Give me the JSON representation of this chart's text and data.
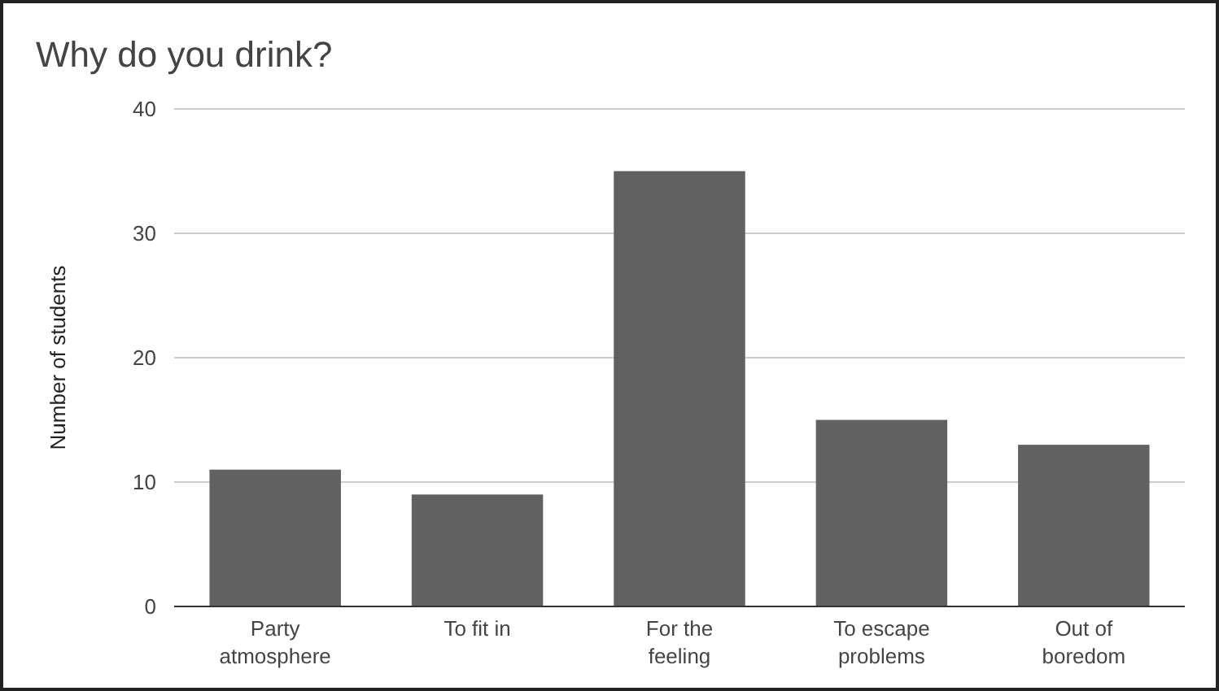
{
  "chart_data": {
    "type": "bar",
    "title": "Why do you drink?",
    "ylabel": "Number of students",
    "categories": [
      "Party atmosphere",
      "To fit in",
      "For the feeling",
      "To escape problems",
      "Out of boredom"
    ],
    "values": [
      11,
      9,
      35,
      15,
      13
    ],
    "color": "#616161",
    "ylim": [
      0,
      40
    ],
    "yticks": [
      0,
      10,
      20,
      30,
      40
    ],
    "grid": "y"
  }
}
